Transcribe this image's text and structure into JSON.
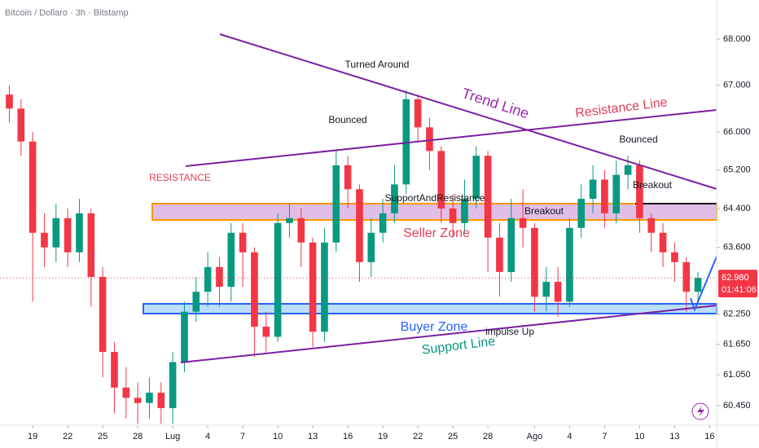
{
  "chart_data": {
    "type": "candlestick",
    "title": "Bitcoin / Dollaro · 3h · Bitstamp",
    "x": [
      -2,
      -1,
      0,
      1,
      2,
      3,
      4,
      5,
      6,
      7,
      8,
      9,
      10,
      11,
      12,
      13,
      14,
      15,
      16,
      17,
      18,
      19,
      20,
      21,
      22,
      23,
      24,
      25,
      26,
      27,
      28,
      29,
      30,
      31,
      32,
      33,
      34,
      35,
      36,
      37,
      38,
      39,
      40,
      41,
      42,
      43,
      44,
      45,
      46,
      47,
      48,
      49,
      50,
      51,
      52,
      53,
      54,
      55,
      56,
      57
    ],
    "open": [
      66800,
      66500,
      65800,
      63900,
      63600,
      64200,
      63500,
      64300,
      63000,
      61500,
      60800,
      60600,
      60500,
      60700,
      60400,
      61300,
      62300,
      62700,
      63200,
      62800,
      63900,
      63500,
      62000,
      61800,
      64100,
      64200,
      63700,
      61900,
      63700,
      65300,
      64800,
      63300,
      63900,
      64300,
      64900,
      66700,
      66100,
      65600,
      64400,
      64100,
      64600,
      65500,
      63800,
      63100,
      64200,
      64000,
      62600,
      62900,
      62500,
      64000,
      64600,
      65000,
      64300,
      65100,
      65300,
      64200,
      63900,
      63500,
      63300,
      62700
    ],
    "high": [
      67000,
      66700,
      66000,
      64300,
      64500,
      64400,
      64600,
      64400,
      63200,
      61700,
      61200,
      60900,
      61000,
      60900,
      61500,
      62500,
      63000,
      63500,
      63400,
      64100,
      64100,
      63600,
      62300,
      64300,
      64500,
      64400,
      63800,
      64000,
      65600,
      65500,
      64900,
      64200,
      64600,
      65300,
      66900,
      66800,
      66300,
      65700,
      64700,
      65000,
      65700,
      65600,
      64100,
      64600,
      64800,
      64100,
      63200,
      63200,
      64200,
      64900,
      65300,
      65200,
      65400,
      65500,
      65400,
      64300,
      64100,
      63700,
      63400,
      63100
    ],
    "low": [
      66200,
      65500,
      62500,
      63200,
      63300,
      63200,
      63300,
      62400,
      61000,
      60300,
      60200,
      60100,
      60200,
      60100,
      60100,
      61100,
      62100,
      62400,
      62400,
      62500,
      62800,
      61400,
      61500,
      61700,
      63800,
      63200,
      61600,
      61700,
      63500,
      64400,
      62900,
      63000,
      63700,
      64100,
      64700,
      65800,
      65200,
      64100,
      63800,
      63900,
      64400,
      63100,
      62600,
      62900,
      63600,
      62300,
      62300,
      62200,
      62400,
      63800,
      64300,
      64000,
      64100,
      64800,
      63900,
      63500,
      63200,
      62900,
      62300,
      62500
    ],
    "close": [
      66500,
      65800,
      63900,
      63600,
      64200,
      63500,
      64300,
      63000,
      61500,
      60800,
      60600,
      60500,
      60700,
      60400,
      61300,
      62300,
      62700,
      63200,
      62800,
      63900,
      63500,
      62000,
      61800,
      64100,
      64200,
      63700,
      61900,
      63700,
      65300,
      64800,
      63300,
      63900,
      64300,
      64900,
      66700,
      66100,
      65600,
      64400,
      64100,
      64600,
      65500,
      63800,
      63100,
      64200,
      64000,
      62600,
      62900,
      62500,
      64000,
      64600,
      65000,
      64300,
      65100,
      65300,
      64200,
      63900,
      63500,
      63300,
      62700,
      62980
    ],
    "up_color": "#089981",
    "down_color": "#f23645",
    "log_scale": true,
    "xlim": [
      -2.8,
      58.6
    ],
    "xticks": [
      {
        "value": 0,
        "label": "19"
      },
      {
        "value": 3,
        "label": "22"
      },
      {
        "value": 6,
        "label": "25"
      },
      {
        "value": 9,
        "label": "28"
      },
      {
        "value": 12,
        "label": "Lug"
      },
      {
        "value": 15,
        "label": "4"
      },
      {
        "value": 18,
        "label": "7"
      },
      {
        "value": 21,
        "label": "10"
      },
      {
        "value": 24,
        "label": "13"
      },
      {
        "value": 27,
        "label": "16"
      },
      {
        "value": 30,
        "label": "19"
      },
      {
        "value": 33,
        "label": "22"
      },
      {
        "value": 36,
        "label": "25"
      },
      {
        "value": 39,
        "label": "28"
      },
      {
        "value": 43,
        "label": "Ago"
      },
      {
        "value": 46,
        "label": "4"
      },
      {
        "value": 49,
        "label": "7"
      },
      {
        "value": 52,
        "label": "10"
      },
      {
        "value": 55,
        "label": "13"
      },
      {
        "value": 58,
        "label": "16"
      }
    ],
    "ylim": [
      60070,
      68860
    ],
    "yticks": [
      {
        "value": 68000,
        "label": "68.000"
      },
      {
        "value": 67000,
        "label": "67.000"
      },
      {
        "value": 66000,
        "label": "66.000"
      },
      {
        "value": 65200,
        "label": "65.200"
      },
      {
        "value": 64400,
        "label": "64.400"
      },
      {
        "value": 63600,
        "label": "63.600"
      },
      {
        "value": 62250,
        "label": "62.250"
      },
      {
        "value": 61650,
        "label": "61.650"
      },
      {
        "value": 61050,
        "label": "61.050"
      },
      {
        "value": 60450,
        "label": "60.450"
      }
    ],
    "last_price": {
      "value": 62980,
      "label": "62.980"
    },
    "countdown": "01:41:06",
    "annotations": [
      "Turned Around",
      "Bounced",
      "Trend Line",
      "Resistance Line",
      "Bounced",
      "RESISTANCE",
      "SupportAndResistance",
      "Breakout",
      "Breakout",
      "Seller Zone",
      "Buyer Zone",
      "impulse Up",
      "Support Line"
    ]
  }
}
